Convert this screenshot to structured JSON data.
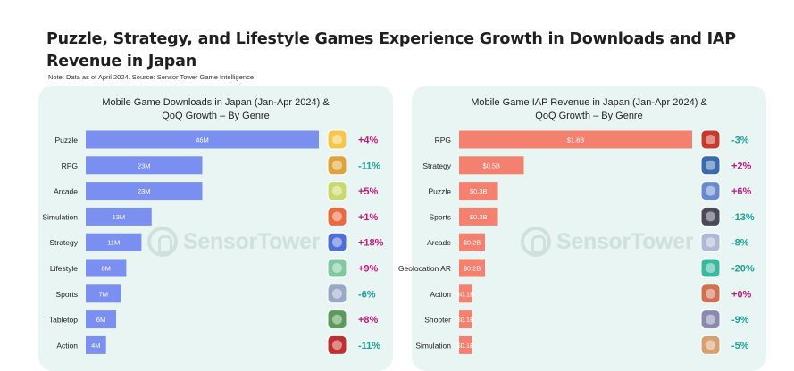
{
  "header": {
    "title": "Puzzle, Strategy, and Lifestyle Games Experience Growth in Downloads and IAP Revenue in Japan",
    "note": "Note: Data as of April 2024. Source: Sensor Tower Game Intelligence"
  },
  "watermark": "SensorTower",
  "colors": {
    "downloads_bar": "#7b8ff0",
    "revenue_bar": "#f4806f",
    "positive": "#c4197d",
    "negative": "#1aa39a",
    "panel_bg": "#e9f5f3"
  },
  "chart_data": [
    {
      "type": "bar",
      "orientation": "horizontal",
      "title": "Mobile Game Downloads in Japan (Jan-Apr 2024) & QoQ Growth – By Genre",
      "title_lines": [
        "Mobile Game Downloads in Japan (Jan-Apr 2024) &",
        "QoQ Growth – By Genre"
      ],
      "categories": [
        "Puzzle",
        "RPG",
        "Arcade",
        "Simulation",
        "Strategy",
        "Lifestyle",
        "Sports",
        "Tabletop",
        "Action"
      ],
      "values": [
        46,
        23,
        23,
        13,
        11,
        8,
        7,
        6,
        4
      ],
      "value_labels": [
        "46M",
        "23M",
        "23M",
        "13M",
        "11M",
        "8M",
        "7M",
        "6M",
        "4M"
      ],
      "unit": "M",
      "growth": [
        "+4%",
        "-11%",
        "+5%",
        "+1%",
        "+18%",
        "+9%",
        "-6%",
        "+8%",
        "-11%"
      ],
      "xlim": [
        0,
        46
      ]
    },
    {
      "type": "bar",
      "orientation": "horizontal",
      "title": "Mobile Game IAP Revenue in Japan (Jan-Apr 2024) & QoQ Growth – By Genre",
      "title_lines": [
        "Mobile Game IAP Revenue in Japan (Jan-Apr 2024) &",
        "QoQ Growth – By Genre"
      ],
      "categories": [
        "RPG",
        "Strategy",
        "Puzzle",
        "Sports",
        "Arcade",
        "Geolocation AR",
        "Action",
        "Shooter",
        "Simulation"
      ],
      "values": [
        1.8,
        0.5,
        0.3,
        0.3,
        0.2,
        0.2,
        0.1,
        0.1,
        0.1
      ],
      "value_labels": [
        "$1.8B",
        "$0.5B",
        "$0.3B",
        "$0.3B",
        "$0.2B",
        "$0.2B",
        "$0.1B",
        "$0.1B",
        "$0.1B"
      ],
      "unit": "B",
      "growth": [
        "-3%",
        "+2%",
        "+6%",
        "-13%",
        "-8%",
        "-20%",
        "+0%",
        "-9%",
        "-5%"
      ],
      "xlim": [
        0,
        1.8
      ]
    }
  ],
  "icons": {
    "downloads": [
      "puzzle-game-icon",
      "rpg-game-icon",
      "arcade-game-icon",
      "simulation-game-icon",
      "strategy-game-icon",
      "lifestyle-game-icon",
      "sports-game-icon",
      "tabletop-game-icon",
      "action-game-icon"
    ],
    "revenue": [
      "rpg-game-icon",
      "strategy-game-icon",
      "puzzle-game-icon",
      "sports-game-icon",
      "arcade-game-icon",
      "geolocation-ar-game-icon",
      "action-game-icon",
      "shooter-game-icon",
      "simulation-game-icon"
    ],
    "download_icon_colors": [
      "#f5c64a",
      "#e0a23a",
      "#c9d86a",
      "#e86a3c",
      "#4f6fd8",
      "#7fc8a0",
      "#9aa8c8",
      "#5a9a5a",
      "#c03030"
    ],
    "revenue_icon_colors": [
      "#c83a2c",
      "#3a6ab0",
      "#6a8ad0",
      "#4a4a5a",
      "#b0b8d8",
      "#3ab8a0",
      "#d07050",
      "#8a8ab0",
      "#d8a070"
    ]
  }
}
